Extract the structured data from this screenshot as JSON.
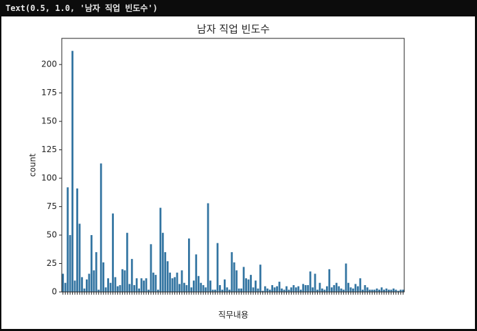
{
  "output_text": "Text(0.5, 1.0, '남자 직업 빈도수')",
  "chart_data": {
    "type": "bar",
    "title": "남자 직업 빈도수",
    "x_label": "직무내용",
    "y_label": "count",
    "color": "#3274a1",
    "categories": [
      null,
      null,
      null,
      null,
      null,
      null,
      null,
      null,
      null,
      null,
      null,
      null,
      null,
      null,
      null,
      null,
      null,
      null,
      null,
      null,
      null,
      null,
      null,
      null,
      null,
      null,
      null,
      null,
      null,
      null,
      null,
      null,
      null,
      null,
      null,
      null,
      null,
      null,
      null,
      null,
      null,
      null,
      null,
      null,
      null,
      null,
      null,
      null,
      null,
      null,
      null,
      null,
      null,
      null,
      null,
      null,
      null,
      null,
      null,
      null,
      null,
      null,
      null,
      null,
      null,
      null,
      null,
      null,
      null,
      null,
      null,
      null,
      null,
      null,
      null,
      null,
      null,
      null,
      null,
      null,
      null,
      null,
      null,
      null,
      null,
      null,
      null,
      null,
      null,
      null,
      null,
      null,
      null,
      null,
      null,
      null,
      null,
      null,
      null,
      null,
      null,
      null,
      null,
      null,
      null,
      null,
      null,
      null,
      null,
      null,
      null,
      null,
      null,
      null,
      null,
      null,
      null,
      null,
      null,
      null,
      null,
      null,
      null,
      null,
      null,
      null,
      null,
      null,
      null,
      null,
      null,
      null,
      null,
      null,
      null,
      null,
      null,
      null,
      null,
      null,
      null,
      null,
      null,
      null
    ],
    "values": [
      16,
      8,
      92,
      50,
      212,
      10,
      91,
      60,
      13,
      3,
      11,
      16,
      50,
      19,
      35,
      2,
      113,
      26,
      4,
      12,
      8,
      69,
      13,
      5,
      6,
      20,
      19,
      52,
      7,
      29,
      6,
      12,
      3,
      12,
      10,
      12,
      2,
      42,
      17,
      15,
      2,
      74,
      52,
      35,
      27,
      17,
      12,
      13,
      17,
      7,
      19,
      8,
      6,
      47,
      4,
      10,
      33,
      14,
      8,
      6,
      4,
      78,
      10,
      2,
      2,
      43,
      6,
      2,
      11,
      4,
      2,
      35,
      26,
      19,
      3,
      3,
      22,
      12,
      11,
      15,
      4,
      10,
      3,
      24,
      1,
      5,
      3,
      2,
      6,
      4,
      5,
      9,
      3,
      2,
      5,
      2,
      4,
      6,
      4,
      5,
      2,
      7,
      6,
      6,
      18,
      4,
      16,
      2,
      8,
      3,
      2,
      5,
      20,
      4,
      6,
      8,
      5,
      3,
      2,
      25,
      8,
      4,
      3,
      7,
      5,
      12,
      2,
      6,
      4,
      2,
      2,
      2,
      3,
      2,
      4,
      2,
      3,
      2,
      2,
      3,
      2,
      1,
      2,
      2
    ],
    "ylim": [
      0,
      223
    ],
    "yticks": [
      0,
      25,
      50,
      75,
      100,
      125,
      150,
      175,
      200
    ]
  }
}
